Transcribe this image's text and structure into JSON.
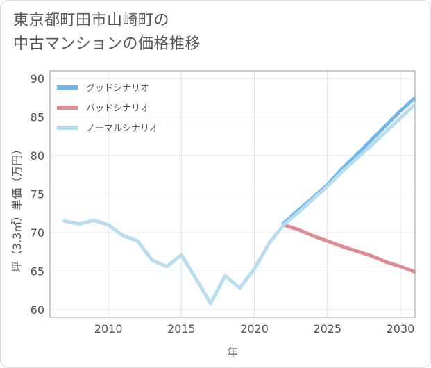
{
  "title_lines": [
    "東京都町田市山崎町の",
    "中古マンションの価格推移"
  ],
  "chart_data": {
    "type": "line",
    "title": "東京都町田市山崎町の中古マンションの価格推移",
    "xlabel": "年",
    "ylabel": "坪（3.3㎡）単価（万円）",
    "xlim": [
      2006,
      2031
    ],
    "ylim": [
      59,
      91
    ],
    "xticks": [
      2010,
      2015,
      2020,
      2025,
      2030
    ],
    "yticks": [
      60,
      65,
      70,
      75,
      80,
      85,
      90
    ],
    "grid": true,
    "legend_position": "top-left",
    "series": [
      {
        "name": "グッドシナリオ",
        "color": "#6cb8ec",
        "x": [
          2022,
          2023,
          2024,
          2025,
          2026,
          2027,
          2028,
          2029,
          2030,
          2031
        ],
        "y": [
          71.2,
          72.9,
          74.5,
          76.2,
          78.3,
          80.1,
          82.0,
          83.9,
          85.8,
          87.5
        ]
      },
      {
        "name": "バッドシナリオ",
        "color": "#e08a94",
        "x": [
          2022,
          2023,
          2024,
          2025,
          2026,
          2027,
          2028,
          2029,
          2030,
          2031
        ],
        "y": [
          71.0,
          70.4,
          69.6,
          68.9,
          68.2,
          67.6,
          67.0,
          66.2,
          65.6,
          64.9
        ]
      },
      {
        "name": "ノーマルシナリオ",
        "color": "#b8dcf0",
        "x": [
          2007,
          2008,
          2009,
          2010,
          2011,
          2012,
          2013,
          2014,
          2015,
          2016,
          2017,
          2018,
          2019,
          2020,
          2021,
          2022,
          2023,
          2024,
          2025,
          2026,
          2027,
          2028,
          2029,
          2030,
          2031
        ],
        "y": [
          71.5,
          71.1,
          71.6,
          71.0,
          69.6,
          68.9,
          66.4,
          65.6,
          67.1,
          64.0,
          60.8,
          64.4,
          62.8,
          65.3,
          68.6,
          71.0,
          72.6,
          74.3,
          76.0,
          77.9,
          79.6,
          81.3,
          83.1,
          84.9,
          86.6
        ]
      }
    ]
  }
}
